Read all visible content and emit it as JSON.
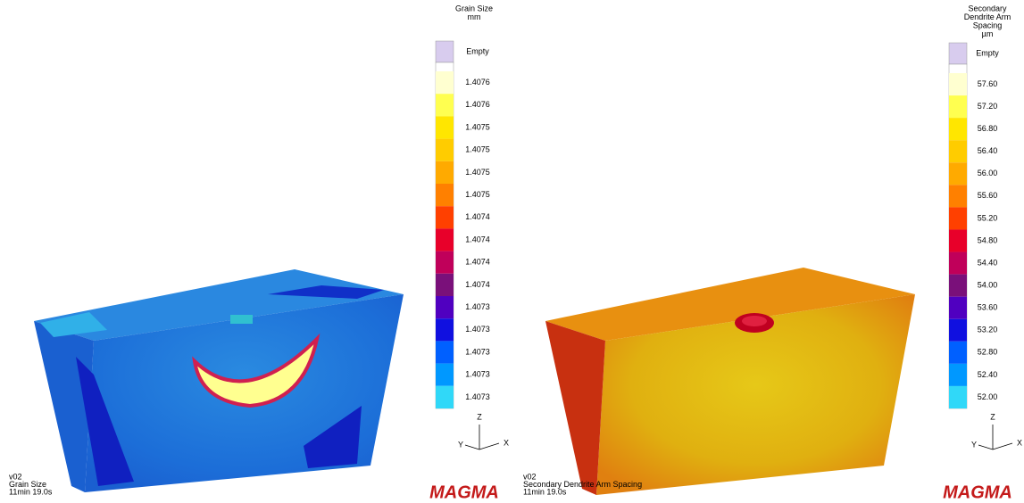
{
  "panels": [
    {
      "legend": {
        "title": [
          "Grain Size",
          "mm"
        ],
        "empty": "Empty",
        "labels": [
          "1.4076",
          "1.4076",
          "1.4075",
          "1.4075",
          "1.4075",
          "1.4075",
          "1.4074",
          "1.4074",
          "1.4074",
          "1.4074",
          "1.4073",
          "1.4073",
          "1.4073",
          "1.4073",
          "1.4073"
        ],
        "empty_color": "#d8ccee",
        "colors": [
          "#ffffd0",
          "#ffff50",
          "#ffe600",
          "#ffcc00",
          "#ffaa00",
          "#ff8000",
          "#ff4000",
          "#e8002a",
          "#c0005a",
          "#7a107a",
          "#5000c0",
          "#1010e0",
          "#0060ff",
          "#0098ff",
          "#30d8f8"
        ]
      },
      "axes": {
        "z": "Z",
        "y": "Y",
        "x": "X"
      },
      "info": [
        "v02",
        "Grain Size",
        "11min 19.0s"
      ],
      "logo": "MAGMA"
    },
    {
      "legend": {
        "title": [
          "Secondary",
          "Dendrite Arm",
          "Spacing",
          "µm"
        ],
        "empty": "Empty",
        "labels": [
          "57.60",
          "57.20",
          "56.80",
          "56.40",
          "56.00",
          "55.60",
          "55.20",
          "54.80",
          "54.40",
          "54.00",
          "53.60",
          "53.20",
          "52.80",
          "52.40",
          "52.00"
        ],
        "empty_color": "#d8ccee",
        "colors": [
          "#ffffd0",
          "#ffff50",
          "#ffe600",
          "#ffcc00",
          "#ffaa00",
          "#ff8000",
          "#ff4000",
          "#e8002a",
          "#c0005a",
          "#7a107a",
          "#5000c0",
          "#1010e0",
          "#0060ff",
          "#0098ff",
          "#30d8f8"
        ]
      },
      "axes": {
        "z": "Z",
        "y": "Y",
        "x": "X"
      },
      "info": [
        "v02",
        "Secondary Dendrite Arm Spacing",
        "11min 19.0s"
      ],
      "logo": "MAGMA"
    }
  ]
}
